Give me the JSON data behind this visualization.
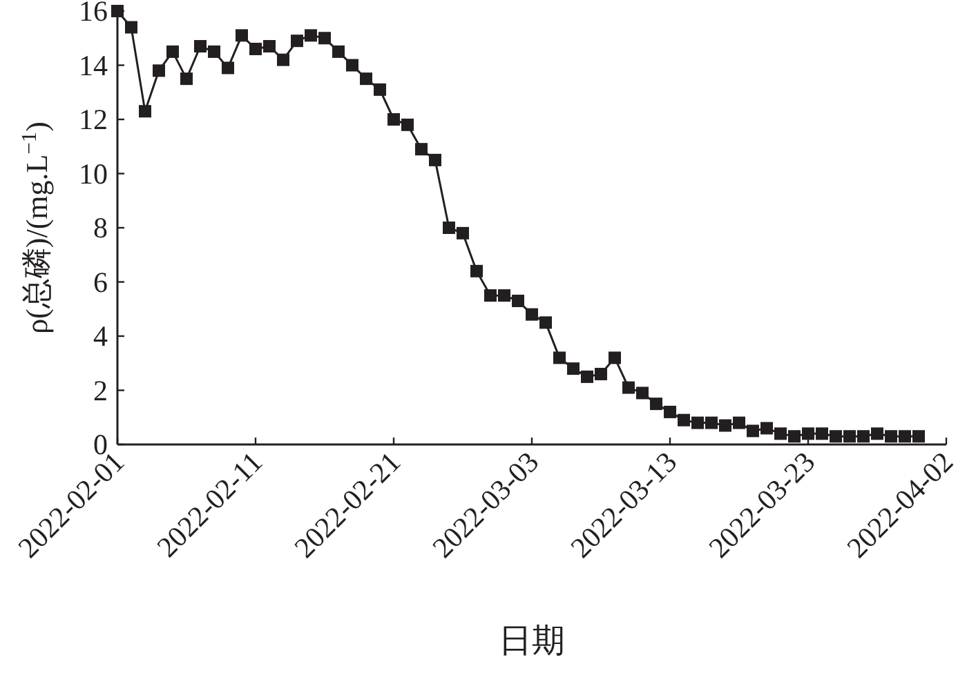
{
  "chart_data": {
    "type": "line",
    "xlabel": "日期",
    "ylabel": "ρ(总磷)/(mg.L$^{−1}$)",
    "x": [
      "2022-02-01",
      "2022-02-02",
      "2022-02-03",
      "2022-02-04",
      "2022-02-05",
      "2022-02-06",
      "2022-02-07",
      "2022-02-08",
      "2022-02-09",
      "2022-02-10",
      "2022-02-11",
      "2022-02-12",
      "2022-02-13",
      "2022-02-14",
      "2022-02-15",
      "2022-02-16",
      "2022-02-17",
      "2022-02-18",
      "2022-02-19",
      "2022-02-20",
      "2022-02-21",
      "2022-02-22",
      "2022-02-23",
      "2022-02-24",
      "2022-02-25",
      "2022-02-26",
      "2022-02-27",
      "2022-02-28",
      "2022-03-01",
      "2022-03-02",
      "2022-03-03",
      "2022-03-04",
      "2022-03-05",
      "2022-03-06",
      "2022-03-07",
      "2022-03-08",
      "2022-03-09",
      "2022-03-10",
      "2022-03-11",
      "2022-03-12",
      "2022-03-13",
      "2022-03-14",
      "2022-03-15",
      "2022-03-16",
      "2022-03-17",
      "2022-03-18",
      "2022-03-19",
      "2022-03-20",
      "2022-03-21",
      "2022-03-22",
      "2022-03-23",
      "2022-03-24",
      "2022-03-25",
      "2022-03-26",
      "2022-03-27",
      "2022-03-28",
      "2022-03-29",
      "2022-03-30",
      "2022-03-31"
    ],
    "series": [
      {
        "color": "#231f20",
        "values": [
          16.0,
          15.4,
          12.3,
          13.8,
          14.5,
          13.5,
          14.7,
          14.5,
          13.9,
          15.1,
          14.6,
          14.7,
          14.2,
          14.9,
          15.1,
          15.0,
          14.5,
          14.0,
          13.5,
          13.1,
          12.0,
          11.8,
          10.9,
          10.5,
          8.0,
          7.8,
          6.4,
          5.5,
          5.5,
          5.3,
          4.8,
          4.5,
          3.2,
          2.8,
          2.5,
          2.6,
          3.2,
          2.1,
          1.9,
          1.5,
          1.2,
          0.9,
          0.8,
          0.8,
          0.7,
          0.8,
          0.5,
          0.6,
          0.4,
          0.3,
          0.4,
          0.4,
          0.3,
          0.3,
          0.3,
          0.4,
          0.3,
          0.3,
          0.3
        ]
      }
    ],
    "xlim": [
      "2022-02-01",
      "2022-04-02"
    ],
    "xticks": [
      "2022-02-01",
      "2022-02-11",
      "2022-02-21",
      "2022-03-03",
      "2022-03-13",
      "2022-03-23",
      "2022-04-02"
    ],
    "ylim": [
      0,
      16
    ],
    "yticks": [
      0,
      2,
      4,
      6,
      8,
      10,
      12,
      14,
      16
    ],
    "marker": "square",
    "line_style": "solid"
  }
}
